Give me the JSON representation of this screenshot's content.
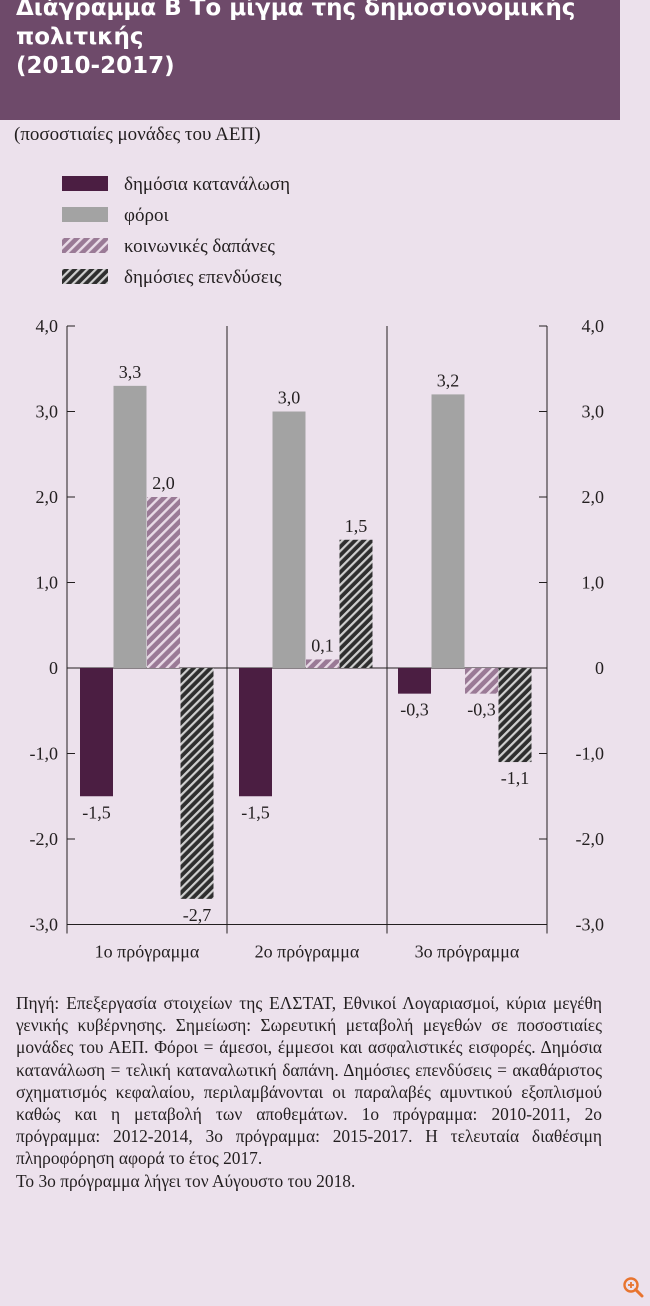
{
  "header": {
    "title_lines": [
      "Διάγραμμα Β  Το μίγμα της δημοσιονομικής",
      "πολιτικής",
      "(2010-2017)"
    ]
  },
  "chart_data": {
    "type": "bar",
    "subtitle": "(ποσοστιαίες μονάδες του ΑΕΠ)",
    "categories": [
      "1ο πρόγραμμα",
      "2ο πρόγραμμα",
      "3ο πρόγραμμα"
    ],
    "series": [
      {
        "name": "δημόσια κατανάλωση",
        "values": [
          -1.5,
          -1.5,
          -0.3
        ],
        "labels": [
          "-1,5",
          "-1,5",
          "-0,3"
        ],
        "color": "#4b1e42",
        "pattern": "solid"
      },
      {
        "name": "φόροι",
        "values": [
          3.3,
          3.0,
          3.2
        ],
        "labels": [
          "3,3",
          "3,0",
          "3,2"
        ],
        "color": "#a3a3a3",
        "pattern": "solid"
      },
      {
        "name": "κοινωνικές δαπάνες",
        "values": [
          2.0,
          0.1,
          -0.3
        ],
        "labels": [
          "2,0",
          "0,1",
          "-0,3"
        ],
        "color": "#9a7a96",
        "pattern": "hatch-light"
      },
      {
        "name": "δημόσιες επενδύσεις",
        "values": [
          -2.7,
          1.5,
          -1.1
        ],
        "labels": [
          "-2,7",
          "1,5",
          "-1,1"
        ],
        "color": "#2e2e2e",
        "pattern": "hatch-dark"
      }
    ],
    "y_ticks": [
      "4,0",
      "3,0",
      "2,0",
      "1,0",
      "0",
      "-1,0",
      "-2,0",
      "-3,0"
    ],
    "y_tick_values": [
      4,
      3,
      2,
      1,
      0,
      -1,
      -2,
      -3
    ],
    "ylim": [
      -3,
      4
    ],
    "grid": false,
    "legend_position": "top-left",
    "secondary_y_axis": true
  },
  "notes": {
    "text": "Πηγή: Επεξεργασία στοιχείων της ΕΛΣΤΑΤ, Εθνικοί Λογαριασμοί, κύρια μεγέθη γενικής κυβέρνησης. Σημείωση: Σωρευτική μεταβολή μεγεθών σε ποσοστιαίες μονάδες του ΑΕΠ. Φόροι = άμεσοι, έμμεσοι και ασφαλιστικές εισφορές. Δημόσια κατανάλωση = τελική καταναλωτική δαπάνη. Δημόσιες επενδύσεις = ακαθάριστος σχηματισμός κεφαλαίου, περιλαμβάνονται οι παραλαβές αμυντικού εξοπλισμού καθώς και η μεταβολή των αποθεμάτων. 1ο πρόγραμμα: 2010-2011, 2ο πρόγραμμα: 2012-2014, 3ο πρόγραμμα: 2015-2017. Η τελευταία διαθέσιμη πληροφόρηση αφορά το έτος 2017.",
    "last_line": "Το 3ο πρόγραμμα λήγει τον Αύγουστο του 2018."
  },
  "zoom_icon": "zoom-in-icon",
  "colors": {
    "header_bg": "#6e4a6a",
    "page_bg": "#ece1ec"
  }
}
